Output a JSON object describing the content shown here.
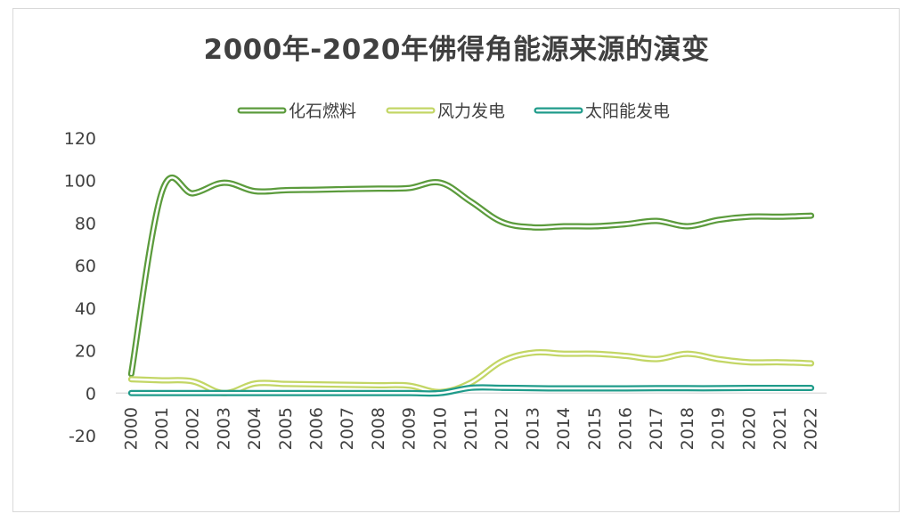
{
  "chart_data": {
    "type": "line",
    "title": "2000年-2020年佛得角能源来源的演变",
    "xlabel": "",
    "ylabel": "",
    "x": [
      "2000",
      "2001",
      "2002",
      "2003",
      "2004",
      "2005",
      "2006",
      "2007",
      "2008",
      "2009",
      "2010",
      "2011",
      "2012",
      "2013",
      "2014",
      "2015",
      "2016",
      "2017",
      "2018",
      "2019",
      "2020",
      "2021",
      "2022"
    ],
    "yticks": [
      "-20",
      "0",
      "20",
      "40",
      "60",
      "80",
      "100",
      "120"
    ],
    "ylim": [
      -20,
      120
    ],
    "grid": false,
    "legend_position": "top",
    "series": [
      {
        "name": "化石燃料",
        "color": "#5b9b3c",
        "values": [
          9,
          95,
          94,
          99,
          95,
          95.5,
          95.7,
          96,
          96.2,
          96.5,
          99,
          90,
          80.5,
          78,
          78.5,
          78.5,
          79.5,
          81,
          78.5,
          81.5,
          83,
          83,
          83.5
        ]
      },
      {
        "name": "风力发电",
        "color": "#c3d665",
        "values": [
          6.5,
          6,
          5.5,
          0,
          4.5,
          4.3,
          4.1,
          3.9,
          3.7,
          3.5,
          0.5,
          5,
          15,
          19,
          18.5,
          18.5,
          17.5,
          16,
          18.5,
          16,
          14.5,
          14.5,
          14
        ]
      },
      {
        "name": "太阳能发电",
        "color": "#1f9b8a",
        "values": [
          0,
          0,
          0,
          0,
          0,
          0,
          0,
          0,
          0,
          0,
          0,
          2.5,
          2.5,
          2.3,
          2.2,
          2.2,
          2.2,
          2.3,
          2.3,
          2.3,
          2.4,
          2.4,
          2.4
        ]
      }
    ]
  }
}
